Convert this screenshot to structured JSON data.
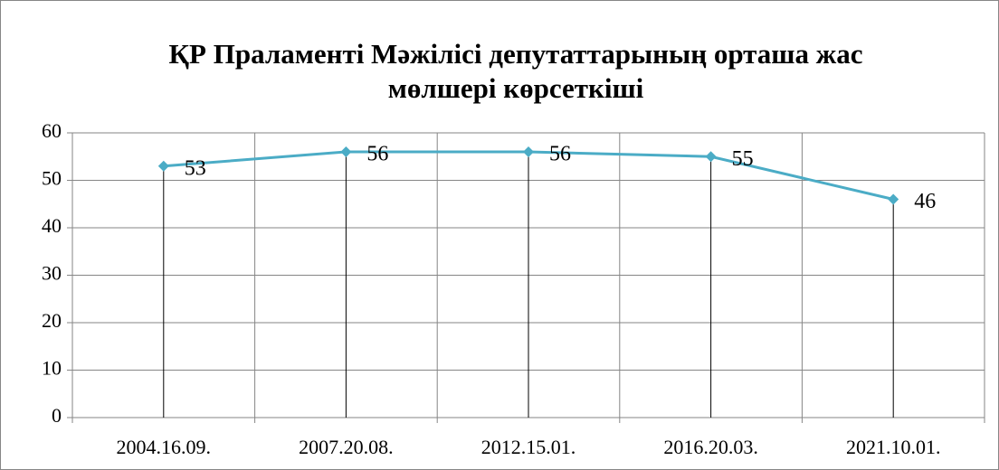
{
  "chart_data": {
    "type": "line",
    "title": [
      "ҚР Праламенті Мәжілісі депутаттарының орташа жас",
      "мөлшері көрсеткіші"
    ],
    "categories": [
      "2004.16.09.",
      "2007.20.08.",
      "2012.15.01.",
      "2016.20.03.",
      "2021.10.01."
    ],
    "values": [
      53,
      56,
      56,
      55,
      46
    ],
    "color": "#4bacc6",
    "ylim": [
      0,
      60
    ],
    "yticks": [
      0,
      10,
      20,
      30,
      40,
      50,
      60
    ],
    "grid": true,
    "drop_lines": true,
    "data_labels": true
  }
}
